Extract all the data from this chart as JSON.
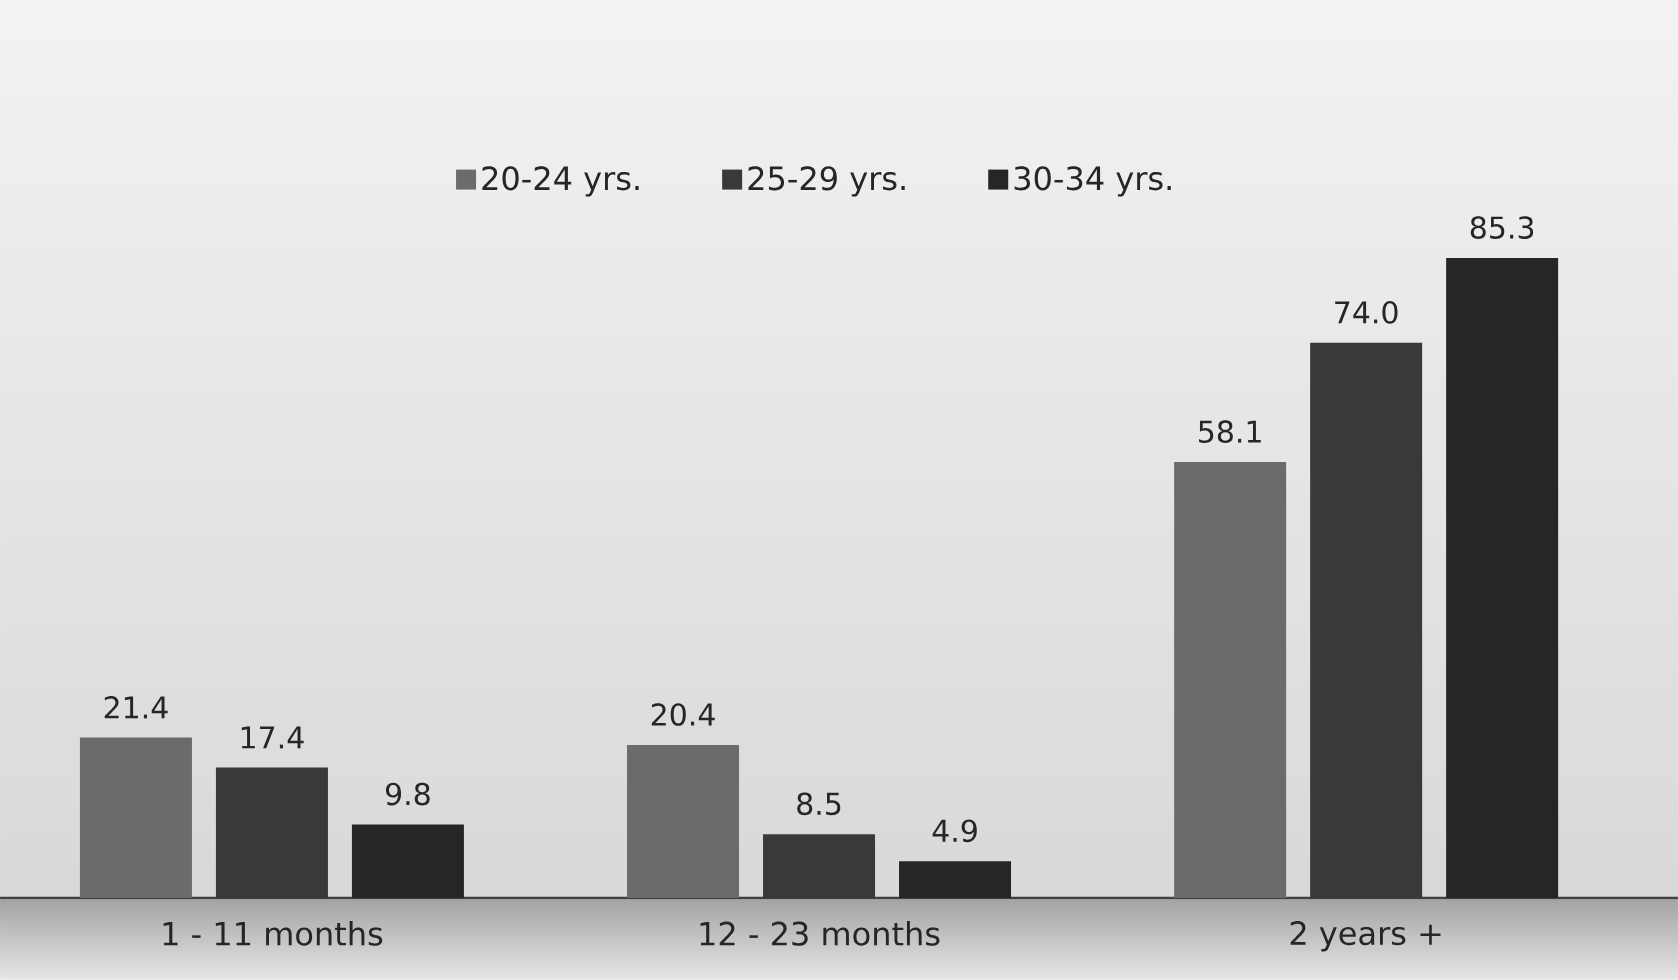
{
  "chart_data": {
    "type": "bar",
    "categories": [
      "1 - 11 months",
      "12 - 23 months",
      "2 years +"
    ],
    "series": [
      {
        "name": "20-24 yrs.",
        "color": "#6b6b6b",
        "values": [
          21.4,
          20.4,
          58.1
        ],
        "value_labels": [
          "21.4",
          "20.4",
          "58.1"
        ]
      },
      {
        "name": "25-29 yrs.",
        "color": "#393939",
        "values": [
          17.4,
          8.5,
          74.0
        ],
        "value_labels": [
          "17.4",
          "8.5",
          "74.0"
        ]
      },
      {
        "name": "30-34 yrs.",
        "color": "#262626",
        "values": [
          9.8,
          4.9,
          85.3
        ],
        "value_labels": [
          "9.8",
          "4.9",
          "85.3"
        ]
      }
    ],
    "legend": "top"
  }
}
